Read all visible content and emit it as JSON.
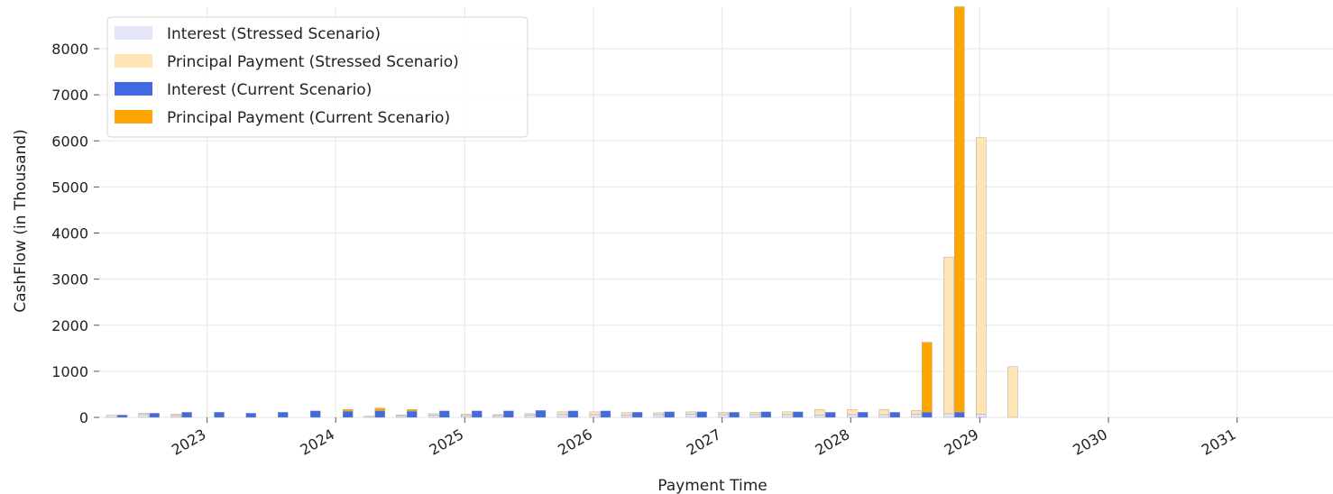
{
  "chart_data": {
    "type": "bar",
    "title": "",
    "xlabel": "Payment Time",
    "ylabel": "CashFlow (in Thousand)",
    "ylim": [
      0,
      8900
    ],
    "y_ticks": [
      0,
      1000,
      2000,
      3000,
      4000,
      5000,
      6000,
      7000,
      8000
    ],
    "y_tick_labels": [
      "0",
      "1000",
      "2000",
      "3000",
      "4000",
      "5000",
      "6000",
      "7000",
      "8000"
    ],
    "xlim": [
      "2022-03-01",
      "2031-09-30"
    ],
    "x_tick_dates": [
      "2023-01-01",
      "2024-01-01",
      "2025-01-01",
      "2026-01-01",
      "2027-01-01",
      "2028-01-01",
      "2029-01-01",
      "2030-01-01",
      "2031-01-01"
    ],
    "x_tick_labels": [
      "2023",
      "2024",
      "2025",
      "2026",
      "2027",
      "2028",
      "2029",
      "2030",
      "2031"
    ],
    "grid": true,
    "legend_position": "upper-left",
    "legend": [
      "Interest (Stressed Scenario)",
      "Principal Payment (Stressed Scenario)",
      "Interest (Current Scenario)",
      "Principal Payment (Current Scenario)"
    ],
    "colors": {
      "stressed_interest": "#e6e6fa",
      "stressed_principal": "#ffe4b5",
      "current_interest": "#4169e1",
      "current_principal": "#ffa500",
      "edge": "#999999",
      "grid": "#ebebeb"
    },
    "x": [
      "2022-04-20",
      "2022-07-20",
      "2022-10-20",
      "2023-01-20",
      "2023-04-20",
      "2023-07-20",
      "2023-10-20",
      "2024-01-20",
      "2024-04-20",
      "2024-07-20",
      "2024-10-20",
      "2025-01-20",
      "2025-04-20",
      "2025-07-20",
      "2025-10-20",
      "2026-01-20",
      "2026-04-20",
      "2026-07-20",
      "2026-10-20",
      "2027-01-20",
      "2027-04-20",
      "2027-07-20",
      "2027-10-20",
      "2028-01-20",
      "2028-04-20",
      "2028-07-20",
      "2028-10-20",
      "2029-01-20",
      "2029-04-20"
    ],
    "series": [
      {
        "name": "Interest (Stressed Scenario)",
        "values": [
          50,
          60,
          40,
          0,
          0,
          0,
          0,
          0,
          30,
          40,
          50,
          40,
          40,
          50,
          60,
          60,
          50,
          60,
          70,
          60,
          60,
          60,
          50,
          60,
          60,
          70,
          80,
          70,
          0
        ]
      },
      {
        "name": "Principal Payment (Stressed Scenario)",
        "values": [
          0,
          30,
          30,
          0,
          0,
          0,
          0,
          0,
          0,
          10,
          30,
          30,
          20,
          30,
          60,
          60,
          50,
          40,
          50,
          50,
          50,
          60,
          120,
          110,
          110,
          80,
          3400,
          6000,
          1100
        ]
      },
      {
        "name": "Interest (Current Scenario)",
        "values": [
          50,
          90,
          110,
          110,
          90,
          110,
          140,
          130,
          140,
          130,
          140,
          140,
          140,
          150,
          140,
          140,
          110,
          120,
          120,
          110,
          120,
          120,
          110,
          110,
          110,
          110,
          110,
          0,
          0
        ]
      },
      {
        "name": "Principal Payment (Current Scenario)",
        "values": [
          0,
          0,
          0,
          0,
          0,
          0,
          0,
          40,
          60,
          40,
          0,
          0,
          0,
          0,
          0,
          0,
          0,
          0,
          0,
          0,
          0,
          0,
          0,
          0,
          0,
          1520,
          8800,
          0,
          0
        ]
      }
    ]
  }
}
